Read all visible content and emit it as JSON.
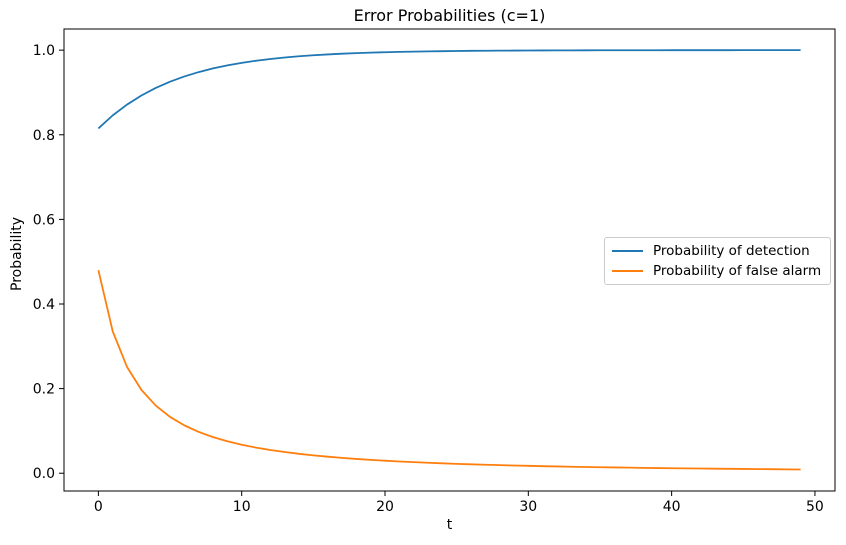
{
  "chart_data": {
    "type": "line",
    "title": "Error Probabilities (c=1)",
    "xlabel": "t",
    "ylabel": "Probability",
    "grid": false,
    "legend_position": "center right",
    "xlim": [
      -2.4,
      51.4
    ],
    "ylim": [
      -0.042,
      1.05
    ],
    "x_ticks": [
      0,
      10,
      20,
      30,
      40,
      50
    ],
    "y_ticks": [
      0.0,
      0.2,
      0.4,
      0.6,
      0.8,
      1.0
    ],
    "x": [
      0,
      1,
      2,
      3,
      4,
      5,
      6,
      7,
      8,
      9,
      10,
      11,
      12,
      13,
      14,
      15,
      16,
      17,
      18,
      19,
      20,
      21,
      22,
      23,
      24,
      25,
      26,
      27,
      28,
      29,
      30,
      31,
      32,
      33,
      34,
      35,
      36,
      37,
      38,
      39,
      40,
      41,
      42,
      43,
      44,
      45,
      46,
      47,
      48,
      49
    ],
    "series": [
      {
        "name": "Probability of detection",
        "color": "#1f77b4",
        "values": [
          0.815,
          0.8458,
          0.8714,
          0.8928,
          0.9106,
          0.9255,
          0.9379,
          0.9482,
          0.9568,
          0.964,
          0.97,
          0.975,
          0.9791,
          0.9826,
          0.9855,
          0.9879,
          0.9899,
          0.9916,
          0.993,
          0.9942,
          0.9951,
          0.9959,
          0.9966,
          0.9972,
          0.9976,
          0.998,
          0.9984,
          0.9986,
          0.9989,
          0.999,
          0.9992,
          0.9993,
          0.9994,
          0.9995,
          0.9996,
          0.9997,
          0.9997,
          0.9998,
          0.9998,
          0.9998,
          0.9999,
          0.9999,
          0.9999,
          0.9999,
          0.9999,
          1.0,
          1.0,
          1.0,
          1.0,
          1.0
        ]
      },
      {
        "name": "Probability of false alarm",
        "color": "#ff7f0e",
        "values": [
          0.48,
          0.3353,
          0.251,
          0.197,
          0.1599,
          0.1331,
          0.1131,
          0.0976,
          0.0854,
          0.0755,
          0.0674,
          0.0606,
          0.0549,
          0.0501,
          0.0459,
          0.0422,
          0.0391,
          0.0363,
          0.0338,
          0.0316,
          0.0296,
          0.0278,
          0.0262,
          0.0248,
          0.0234,
          0.0222,
          0.0211,
          0.0201,
          0.0191,
          0.0183,
          0.0175,
          0.0167,
          0.016,
          0.0154,
          0.0148,
          0.0142,
          0.0137,
          0.0132,
          0.0127,
          0.0122,
          0.0118,
          0.0114,
          0.0111,
          0.0107,
          0.0104,
          0.0101,
          0.0097,
          0.0095,
          0.0092,
          0.0089
        ]
      }
    ]
  }
}
